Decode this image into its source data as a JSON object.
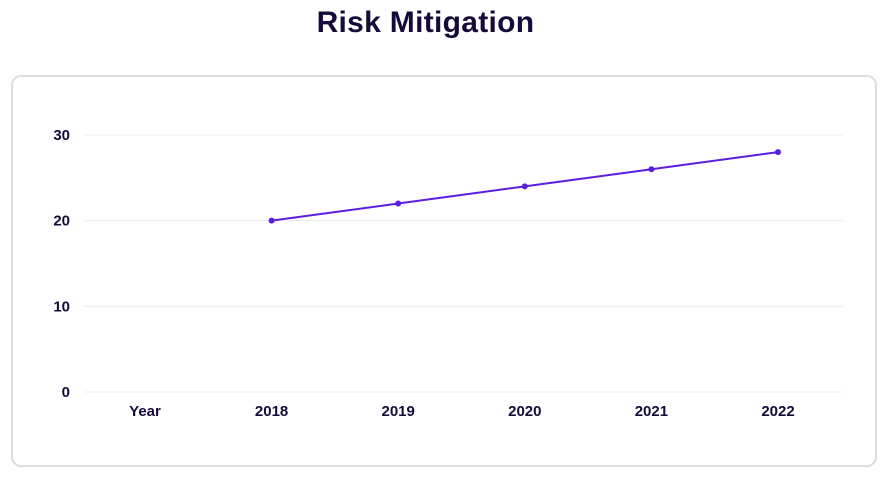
{
  "chart_data": {
    "type": "line",
    "title": "Risk Mitigation",
    "categories": [
      "Year",
      "2018",
      "2019",
      "2020",
      "2021",
      "2022"
    ],
    "series": [
      {
        "values": [
          null,
          20,
          22,
          24,
          26,
          28
        ]
      }
    ],
    "yticks": [
      0,
      10,
      20,
      30
    ],
    "ylim": [
      0,
      30
    ],
    "grid": true,
    "line_color": "#5b1ee0",
    "grid_color": "#ececee"
  }
}
